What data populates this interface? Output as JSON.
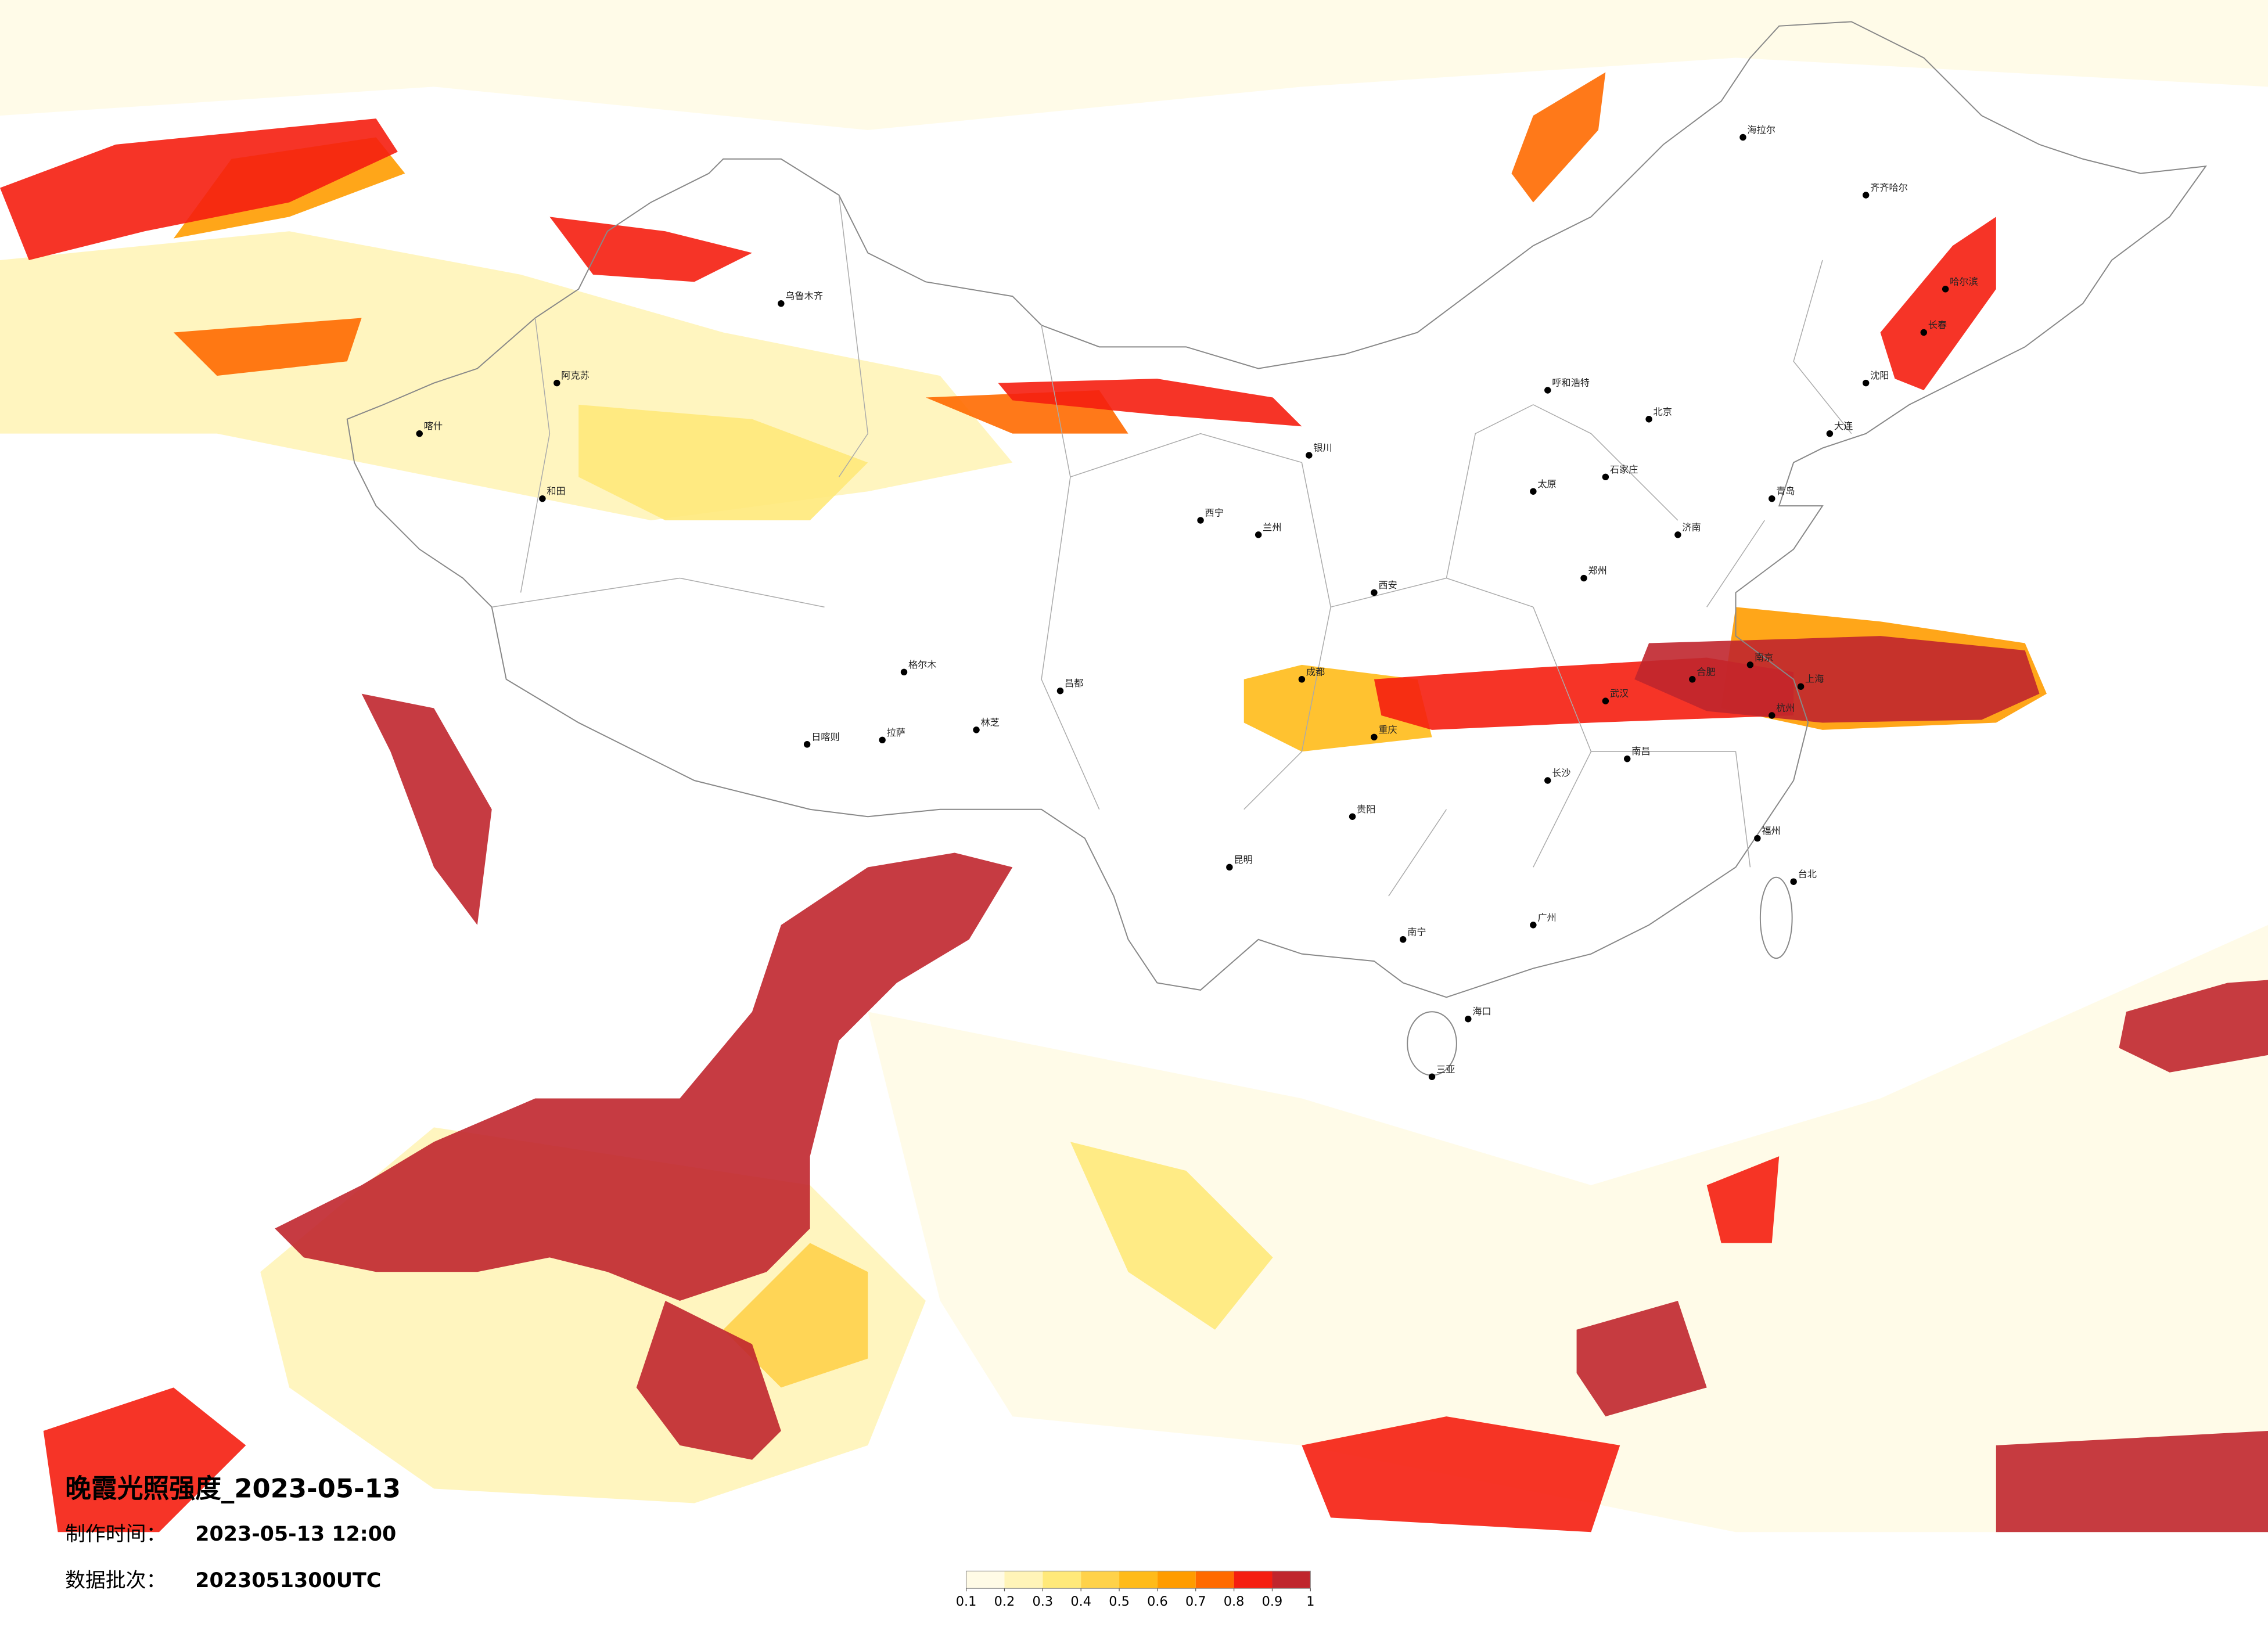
{
  "title": "晚霞光照强度_2023-05-13",
  "made_time": {
    "label": "制作时间：",
    "value": "2023-05-13 12:00"
  },
  "batch": {
    "label": "数据批次：",
    "value": "2023051300UTC"
  },
  "legend": {
    "colors": [
      "#fffbe6",
      "#fff4b8",
      "#ffe97a",
      "#ffd24a",
      "#ffbb1a",
      "#ff9c00",
      "#ff6a00",
      "#f51e10",
      "#c0262d"
    ],
    "ticks": [
      0.1,
      0.2,
      0.3,
      0.4,
      0.5,
      0.6,
      0.7,
      0.8,
      0.9,
      1
    ]
  },
  "cities": [
    "乌鲁木齐",
    "阿克苏",
    "和田",
    "喀什",
    "格尔木",
    "拉萨",
    "日喀则",
    "林芝",
    "昌都",
    "西宁",
    "兰州",
    "银川",
    "呼和浩特",
    "哈尔滨",
    "长春",
    "沈阳",
    "北京",
    "石家庄",
    "太原",
    "西安",
    "郑州",
    "济南",
    "南京",
    "上海",
    "杭州",
    "合肥",
    "武汉",
    "南昌",
    "长沙",
    "重庆",
    "成都",
    "贵阳",
    "昆明",
    "南宁",
    "广州",
    "福州",
    "台北",
    "海口",
    "三亚",
    "齐齐哈尔",
    "海拉尔",
    "大连",
    "青岛"
  ]
}
